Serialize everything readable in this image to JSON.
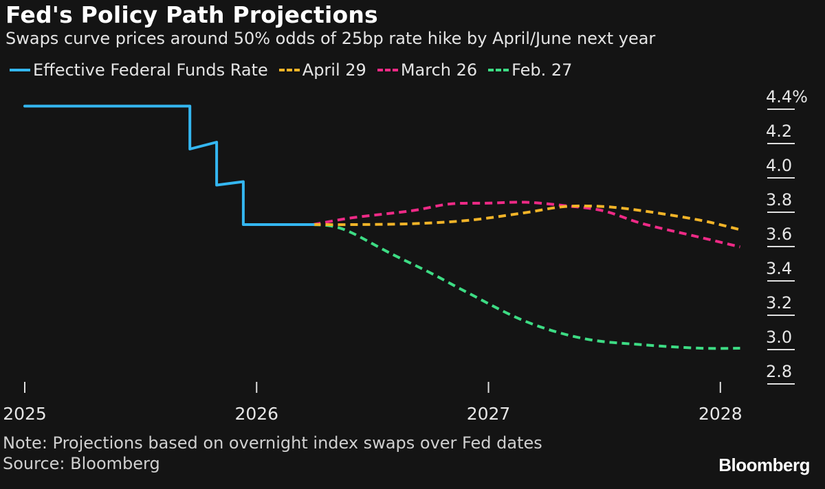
{
  "header": {
    "title": "Fed's Policy Path Projections",
    "subtitle": "Swaps curve prices around 50% odds of 25bp rate hike by April/June next year"
  },
  "legend": [
    {
      "label": "Effective Federal Funds Rate",
      "color": "#34b7f1",
      "style": "solid"
    },
    {
      "label": "April 29",
      "color": "#f2b428",
      "style": "dashed"
    },
    {
      "label": "March 26",
      "color": "#ee2a86",
      "style": "dashed"
    },
    {
      "label": "Feb. 27",
      "color": "#3ddc84",
      "style": "dashed"
    }
  ],
  "footer": {
    "note": "Note: Projections based on overnight index swaps over Fed dates",
    "source": "Source: Bloomberg",
    "brand": "Bloomberg"
  },
  "chart_data": {
    "type": "line",
    "title": "Fed's Policy Path Projections",
    "subtitle": "Swaps curve prices around 50% odds of 25bp rate hike by April/June next year",
    "x_ticks": [
      "2025",
      "2026",
      "2027",
      "2028"
    ],
    "x_range": [
      "2025-01-01",
      "2028-02-01"
    ],
    "y_ticks": [
      "4.4%",
      "4.2",
      "4.0",
      "3.8",
      "3.6",
      "3.4",
      "3.2",
      "3.0",
      "2.8"
    ],
    "y_range": [
      2.8,
      4.4
    ],
    "y_axis_position": "right",
    "grid": false,
    "legend_position": "top-left",
    "series": [
      {
        "name": "Effective Federal Funds Rate",
        "color": "#34b7f1",
        "style": "solid",
        "step": true,
        "points": [
          [
            "2025-01-01",
            4.33
          ],
          [
            "2025-09-18",
            4.33
          ],
          [
            "2025-09-18",
            4.08
          ],
          [
            "2025-10-30",
            4.12
          ],
          [
            "2025-10-30",
            3.87
          ],
          [
            "2025-12-11",
            3.89
          ],
          [
            "2025-12-11",
            3.64
          ],
          [
            "2026-03-31",
            3.64
          ]
        ]
      },
      {
        "name": "April 29",
        "color": "#f2b428",
        "style": "dashed",
        "points": [
          [
            "2026-03-31",
            3.64
          ],
          [
            "2026-06-01",
            3.64
          ],
          [
            "2026-09-01",
            3.645
          ],
          [
            "2026-12-01",
            3.665
          ],
          [
            "2027-03-01",
            3.71
          ],
          [
            "2027-05-01",
            3.745
          ],
          [
            "2027-07-01",
            3.745
          ],
          [
            "2027-09-01",
            3.72
          ],
          [
            "2027-12-01",
            3.665
          ],
          [
            "2028-02-01",
            3.61
          ]
        ]
      },
      {
        "name": "March 26",
        "color": "#ee2a86",
        "style": "dashed",
        "points": [
          [
            "2026-03-31",
            3.64
          ],
          [
            "2026-06-01",
            3.68
          ],
          [
            "2026-09-01",
            3.72
          ],
          [
            "2026-11-01",
            3.76
          ],
          [
            "2027-01-01",
            3.765
          ],
          [
            "2027-03-01",
            3.77
          ],
          [
            "2027-05-01",
            3.75
          ],
          [
            "2027-07-01",
            3.72
          ],
          [
            "2027-09-01",
            3.645
          ],
          [
            "2027-12-01",
            3.565
          ],
          [
            "2028-02-01",
            3.51
          ]
        ]
      },
      {
        "name": "Feb. 27",
        "color": "#3ddc84",
        "style": "dashed",
        "points": [
          [
            "2026-03-31",
            3.64
          ],
          [
            "2026-05-01",
            3.63
          ],
          [
            "2026-06-01",
            3.59
          ],
          [
            "2026-08-01",
            3.47
          ],
          [
            "2026-10-01",
            3.36
          ],
          [
            "2026-12-01",
            3.24
          ],
          [
            "2027-03-01",
            3.075
          ],
          [
            "2027-06-01",
            2.975
          ],
          [
            "2027-09-01",
            2.94
          ],
          [
            "2027-12-01",
            2.92
          ],
          [
            "2028-02-01",
            2.92
          ]
        ]
      }
    ]
  }
}
